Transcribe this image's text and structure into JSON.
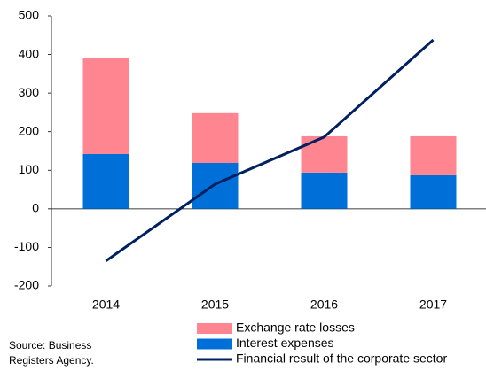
{
  "chart_data": {
    "type": "bar",
    "categories": [
      "2014",
      "2015",
      "2016",
      "2017"
    ],
    "series": [
      {
        "name": "Exchange rate losses",
        "color": "#ff8591",
        "stack": true,
        "values": [
          250,
          129,
          94,
          101
        ]
      },
      {
        "name": "Interest expenses",
        "color": "#0070d8",
        "stack": true,
        "values": [
          142,
          119,
          94,
          87
        ]
      },
      {
        "name": "Financial result of the corporate sector",
        "color": "#002060",
        "kind": "line",
        "values": [
          -135,
          64,
          186,
          438
        ]
      }
    ],
    "ylim": [
      -200,
      500
    ],
    "yticks": [
      -200,
      -100,
      0,
      100,
      200,
      300,
      400,
      500
    ],
    "grid": false,
    "source": [
      "Source: Business",
      "Registers Agency."
    ]
  }
}
